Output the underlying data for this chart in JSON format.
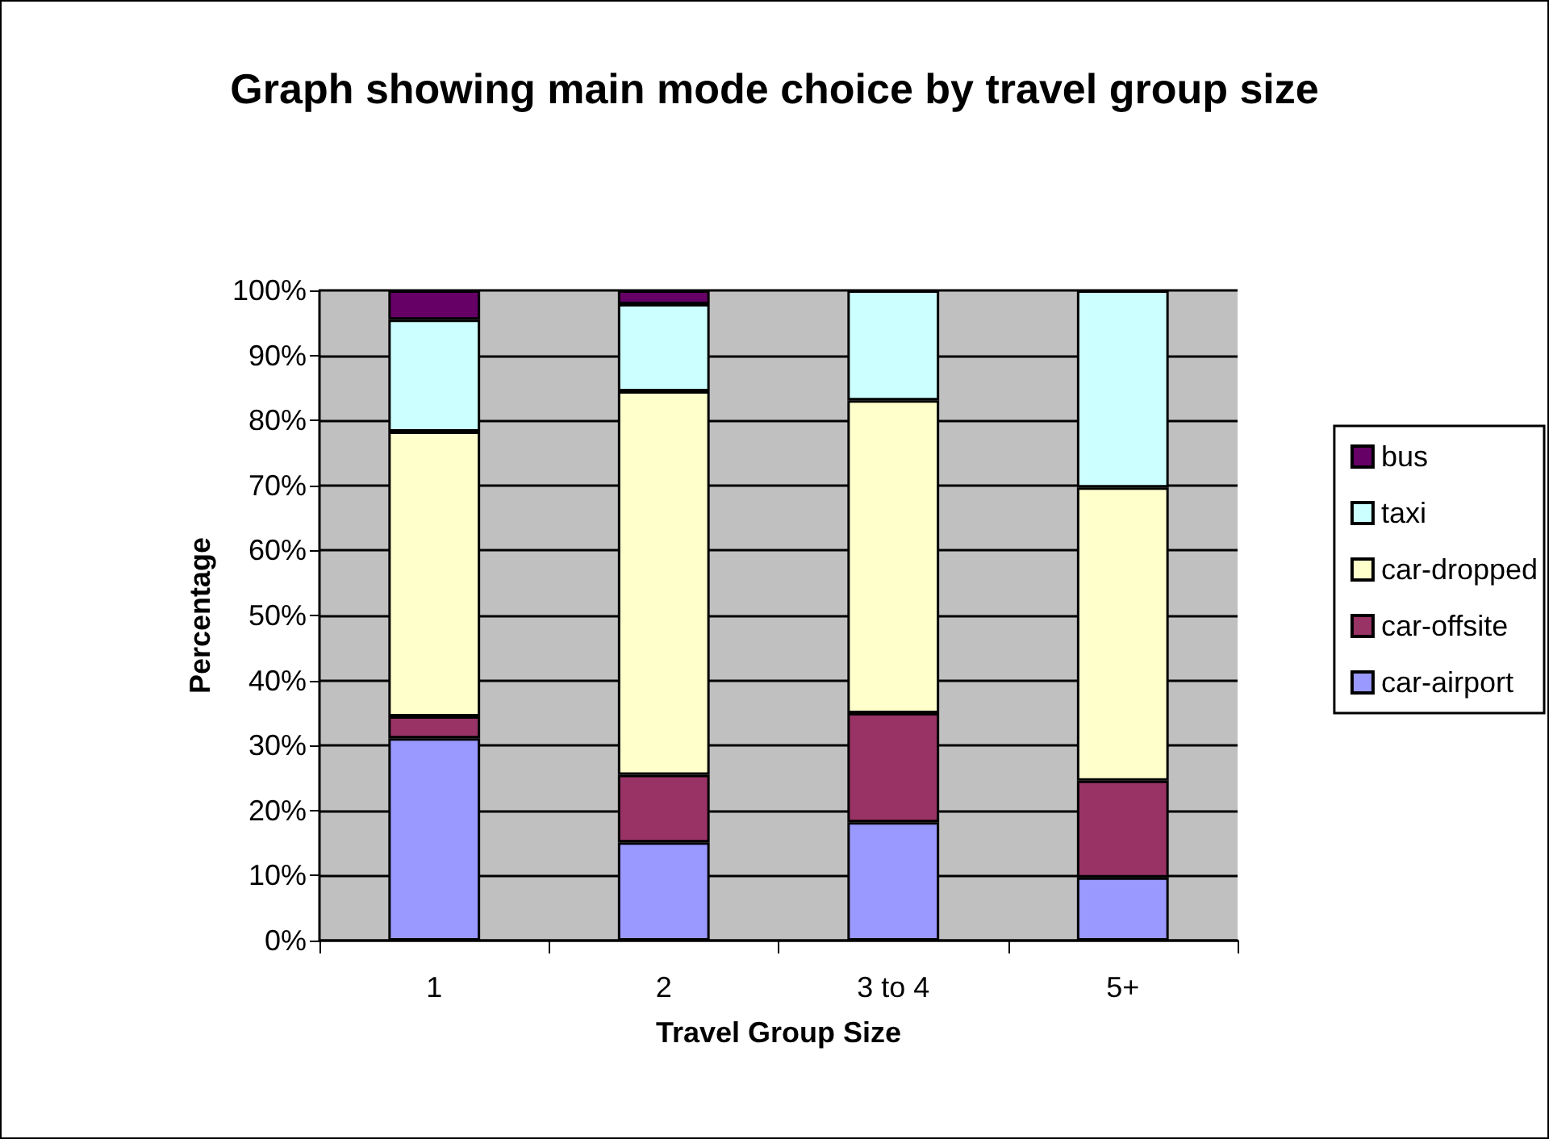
{
  "chart_data": {
    "type": "bar",
    "title": "Graph showing main mode choice by travel group size",
    "xlabel": "Travel Group Size",
    "ylabel": "Percentage",
    "categories": [
      "1",
      "2",
      "3 to 4",
      "5+"
    ],
    "stacked": true,
    "series": [
      {
        "name": "car-airport",
        "color": "#9999ff",
        "values": [
          31.1,
          15.1,
          18.2,
          9.7
        ]
      },
      {
        "name": "car-offsite",
        "color": "#993366",
        "values": [
          3.4,
          10.4,
          16.8,
          14.9
        ]
      },
      {
        "name": "car-dropped",
        "color": "#ffffcc",
        "values": [
          43.8,
          59,
          48.1,
          45.1
        ]
      },
      {
        "name": "taxi",
        "color": "#ccffff",
        "values": [
          17.2,
          13.4,
          16.9,
          30.3
        ]
      },
      {
        "name": "bus",
        "color": "#660066",
        "values": [
          4.5,
          2.1,
          null,
          null
        ]
      }
    ],
    "ylim": [
      0,
      100
    ],
    "yticks": [
      {
        "value": 0,
        "label": "0%"
      },
      {
        "value": 10,
        "label": "10%"
      },
      {
        "value": 20,
        "label": "20%"
      },
      {
        "value": 30,
        "label": "30%"
      },
      {
        "value": 40,
        "label": "40%"
      },
      {
        "value": 50,
        "label": "50%"
      },
      {
        "value": 60,
        "label": "60%"
      },
      {
        "value": 70,
        "label": "70%"
      },
      {
        "value": 80,
        "label": "80%"
      },
      {
        "value": 90,
        "label": "90%"
      },
      {
        "value": 100,
        "label": "100%"
      }
    ],
    "grid": "y",
    "legend": "right"
  }
}
